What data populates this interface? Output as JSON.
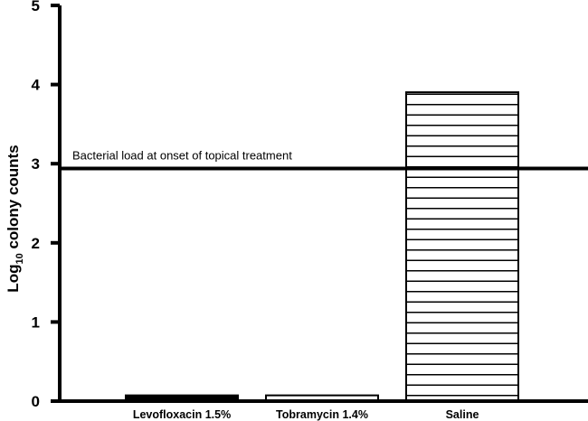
{
  "chart_data": {
    "type": "bar",
    "categories": [
      "Levofloxacin 1.5%",
      "Tobramycin 1.4%",
      "Saline"
    ],
    "values": [
      0.05,
      0.05,
      3.88
    ],
    "ylabel": {
      "prefix": "Log",
      "subscript": "10",
      "suffix": " colony counts"
    },
    "ylim": [
      0,
      5
    ],
    "yticks": [
      "0",
      "1",
      "2",
      "3",
      "4",
      "5"
    ],
    "grid": false,
    "reference_line": {
      "value": 2.94,
      "label": "Bacterial  load at onset of topical treatment"
    },
    "bar_fill": "horizontal-hatch",
    "colors": {
      "axis": "#000000",
      "bar_outline": "#000000",
      "bar_fill": "#ffffff"
    }
  }
}
